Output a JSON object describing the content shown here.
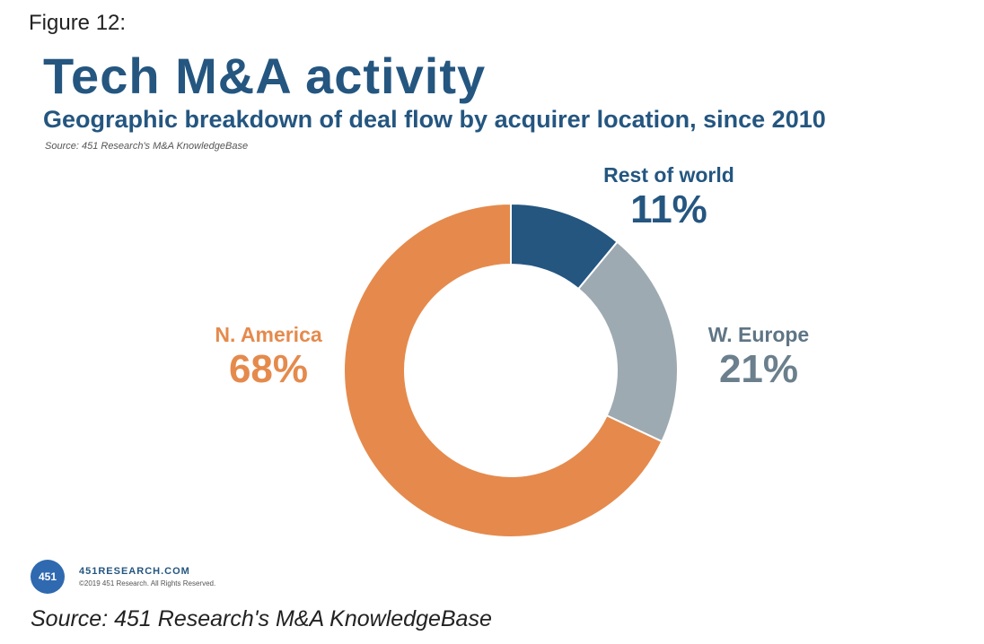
{
  "figure_label": "Figure 12:",
  "header": {
    "title": "Tech M&A activity",
    "subtitle": "Geographic breakdown of deal flow by acquirer location, since 2010",
    "source": "Source: 451 Research's M&A KnowledgeBase"
  },
  "chart_data": {
    "type": "pie",
    "donut": true,
    "title": "Tech M&A activity",
    "subtitle": "Geographic breakdown of deal flow by acquirer location, since 2010",
    "slices": [
      {
        "label": "Rest of world",
        "value": 11,
        "value_label": "11%",
        "color": "#245680"
      },
      {
        "label": "W. Europe",
        "value": 21,
        "value_label": "21%",
        "color": "#9eaab1"
      },
      {
        "label": "N. America",
        "value": 68,
        "value_label": "68%",
        "color": "#e58a4c"
      }
    ],
    "legend": "none"
  },
  "logo": {
    "badge": "451",
    "url": "451RESEARCH.COM",
    "copyright": "©2019 451 Research. All Rights Reserved."
  },
  "footer": {
    "source": "Source: 451 Research's M&A KnowledgeBase"
  }
}
